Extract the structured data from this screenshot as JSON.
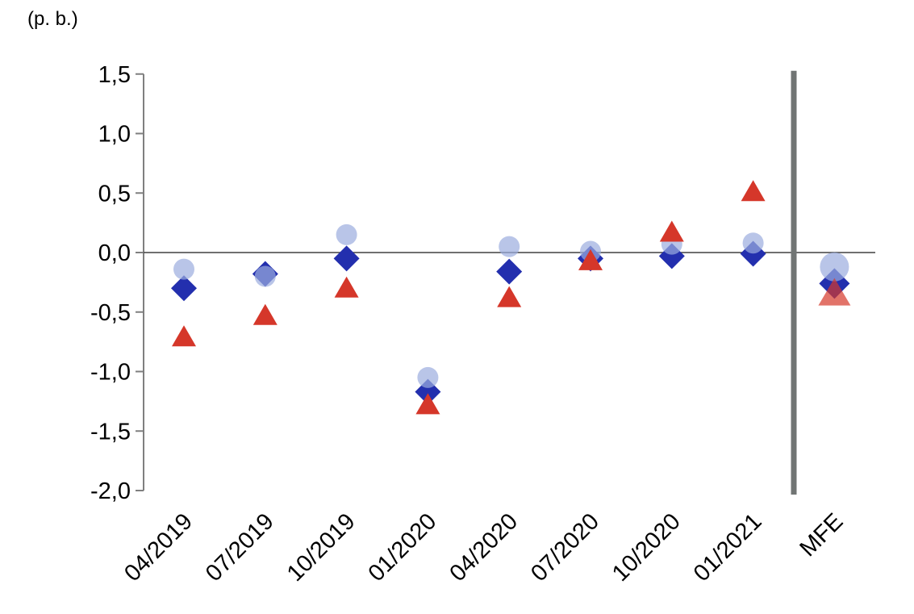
{
  "header": {
    "unit_label": "(p. b.)"
  },
  "chart_data": {
    "type": "scatter",
    "title": "",
    "unit_label": "(p. b.)",
    "xlabel": "",
    "ylabel": "(p. b.)",
    "categories": [
      "04/2019",
      "07/2019",
      "10/2019",
      "01/2020",
      "04/2020",
      "07/2020",
      "10/2020",
      "01/2021",
      "MFE"
    ],
    "series": [
      {
        "name": "diamond-series",
        "marker": "diamond",
        "color": "#232fae",
        "opacity": 1,
        "values": [
          -0.3,
          -0.18,
          -0.05,
          -1.17,
          -0.16,
          -0.05,
          -0.03,
          -0.01,
          -0.26
        ]
      },
      {
        "name": "circle-series",
        "marker": "circle",
        "color": "#9badde",
        "opacity": 0.7,
        "values": [
          -0.14,
          -0.2,
          0.15,
          -1.05,
          0.05,
          0.01,
          0.07,
          0.08,
          -0.12
        ]
      },
      {
        "name": "triangle-series",
        "marker": "triangle",
        "color": "#d5372a",
        "opacity": 1,
        "mfe_opacity": 0.7,
        "values": [
          -0.7,
          -0.52,
          -0.29,
          -1.27,
          -0.37,
          -0.06,
          0.18,
          0.52,
          -0.33
        ]
      }
    ],
    "ylim": [
      -2.0,
      1.5
    ],
    "ytick_step": 0.5,
    "ytick_labels": [
      "1,5",
      "1,0",
      "0,5",
      "0,0",
      "-0,5",
      "-1,0",
      "-1,5",
      "-2,0"
    ],
    "ytick_values": [
      1.5,
      1.0,
      0.5,
      0.0,
      -0.5,
      -1.0,
      -1.5,
      -2.0
    ],
    "decimal_separator": ",",
    "grid": "zero-line-only",
    "legend_position": "none",
    "separator_bar_before": "MFE",
    "colors": {
      "axis": "#7f7f7f",
      "zero_line": "#404040",
      "separator_bar": "#717574",
      "circle_marker": "#b9c5e8",
      "diamond_marker": "#232fae",
      "triangle_marker": "#d5372a"
    }
  }
}
